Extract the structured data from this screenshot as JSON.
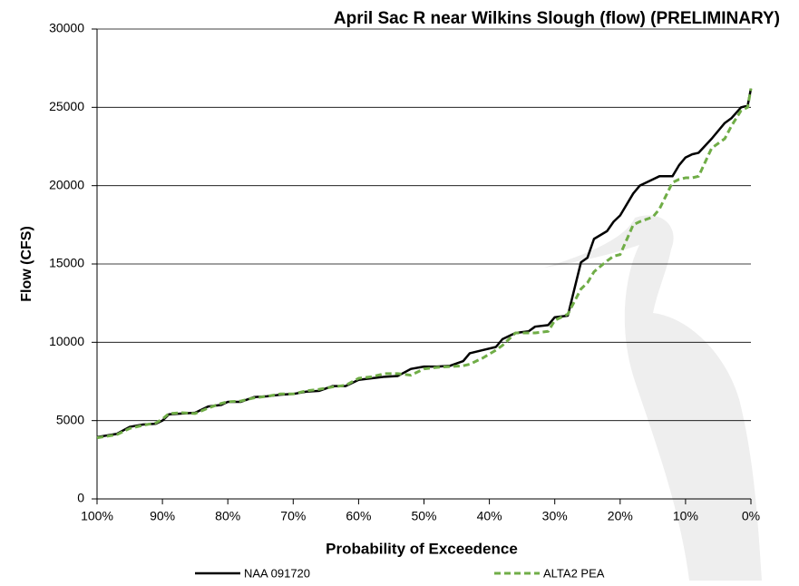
{
  "chart_data": {
    "type": "line",
    "title": "April Sac R near Wilkins Slough (flow) (PRELIMINARY)",
    "x_label": "Probability of Exceedence",
    "y_label": "Flow (CFS)",
    "x": [
      100,
      97,
      95,
      93,
      91,
      90,
      89,
      87,
      85,
      83,
      81,
      80,
      78,
      76,
      74,
      72,
      70,
      68,
      66,
      64,
      62,
      60,
      58,
      56,
      54,
      52,
      50,
      48,
      46,
      44,
      43,
      41,
      39,
      38,
      36,
      34,
      33,
      31,
      30,
      28,
      26,
      25,
      24,
      22,
      21,
      20,
      18,
      17,
      15,
      14,
      12,
      11,
      10,
      9,
      8,
      6,
      4,
      3,
      1.5,
      0.5,
      0
    ],
    "series": [
      {
        "name": "NAA 091720",
        "color": "#000000",
        "line_style": "solid",
        "values": [
          3950,
          4150,
          4600,
          4750,
          4800,
          5000,
          5400,
          5450,
          5500,
          5900,
          6000,
          6200,
          6200,
          6500,
          6550,
          6650,
          6700,
          6850,
          6900,
          7200,
          7200,
          7600,
          7700,
          7800,
          7850,
          8300,
          8450,
          8450,
          8500,
          8800,
          9300,
          9500,
          9700,
          10200,
          10600,
          10700,
          11000,
          11100,
          11600,
          11700,
          15100,
          15400,
          16600,
          17100,
          17700,
          18100,
          19500,
          20000,
          20400,
          20600,
          20600,
          21300,
          21800,
          22000,
          22100,
          23000,
          24000,
          24300,
          25000,
          25100,
          26200
        ]
      },
      {
        "name": "ALTA2 PEA",
        "color": "#70ad47",
        "line_style": "dashed",
        "values": [
          3900,
          4100,
          4500,
          4700,
          4850,
          5100,
          5450,
          5500,
          5450,
          5800,
          6100,
          6200,
          6250,
          6450,
          6550,
          6700,
          6700,
          6900,
          7000,
          7150,
          7250,
          7700,
          7800,
          8000,
          8000,
          7900,
          8300,
          8400,
          8450,
          8500,
          8600,
          9000,
          9500,
          9800,
          10600,
          10600,
          10600,
          10700,
          11400,
          11800,
          13400,
          13800,
          14500,
          15200,
          15500,
          15600,
          17500,
          17700,
          18000,
          18500,
          20200,
          20400,
          20500,
          20500,
          20600,
          22400,
          23000,
          23800,
          24800,
          25000,
          26200
        ]
      }
    ],
    "xlim": [
      100,
      0
    ],
    "xticks": [
      {
        "value": 100,
        "label": "100%"
      },
      {
        "value": 90,
        "label": "90%"
      },
      {
        "value": 80,
        "label": "80%"
      },
      {
        "value": 70,
        "label": "70%"
      },
      {
        "value": 60,
        "label": "60%"
      },
      {
        "value": 50,
        "label": "50%"
      },
      {
        "value": 40,
        "label": "40%"
      },
      {
        "value": 30,
        "label": "30%"
      },
      {
        "value": 20,
        "label": "20%"
      },
      {
        "value": 10,
        "label": "10%"
      },
      {
        "value": 0,
        "label": "0%"
      }
    ],
    "ylim": [
      0,
      30000
    ],
    "yticks": [
      0,
      5000,
      10000,
      15000,
      20000,
      25000,
      30000
    ],
    "grid": true,
    "legend": "bottom"
  }
}
